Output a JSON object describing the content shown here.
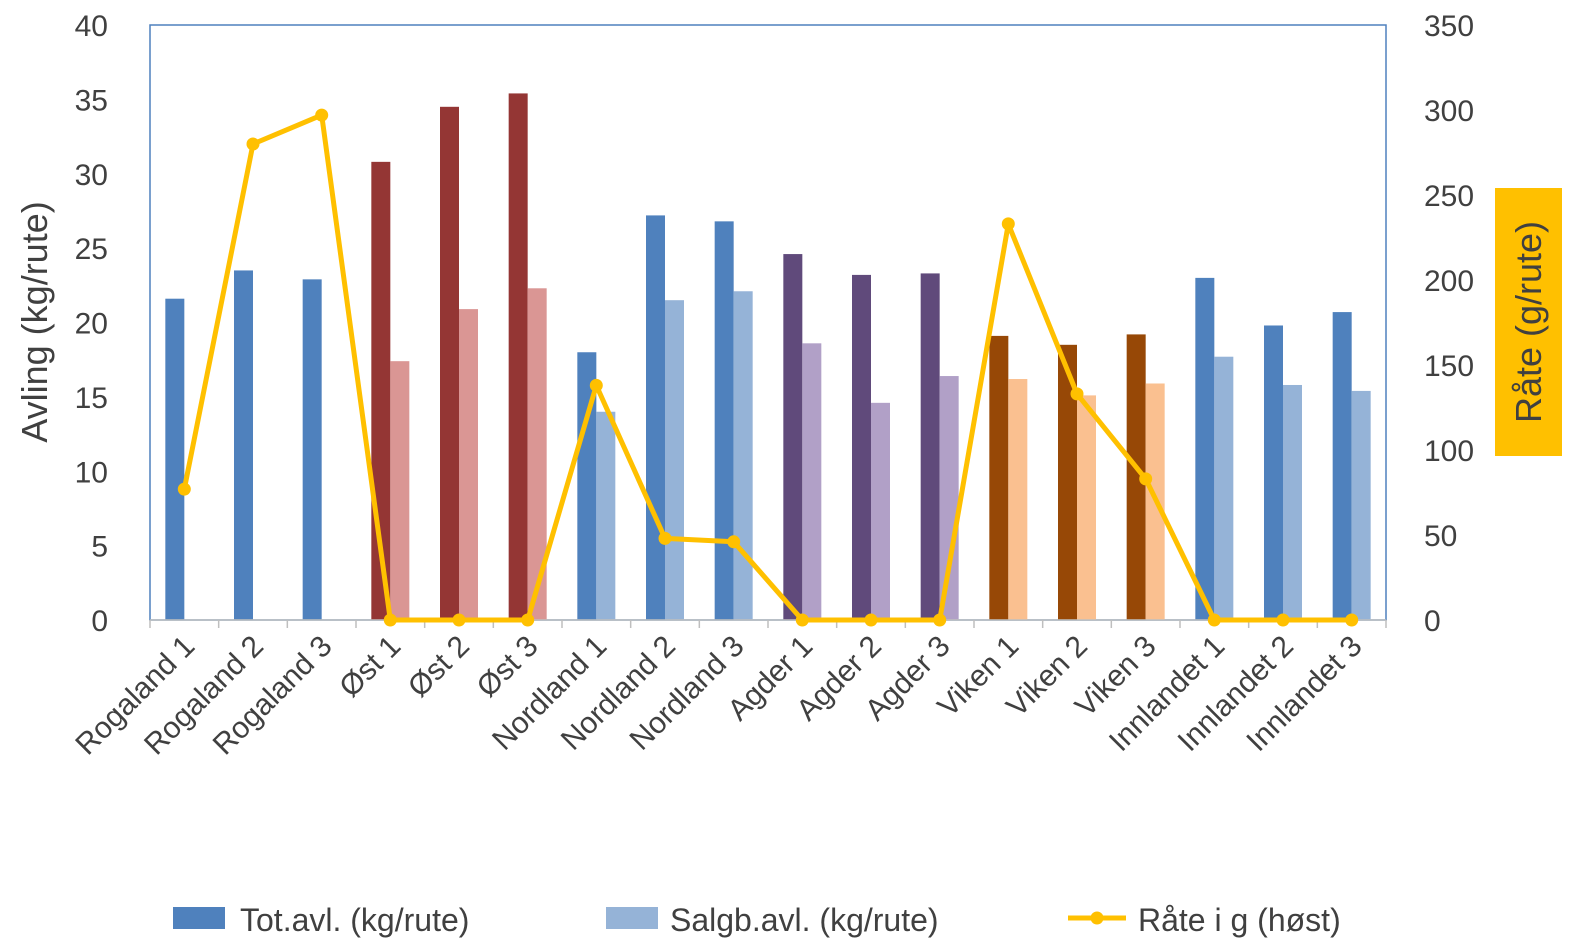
{
  "chart_data": {
    "type": "bar",
    "categories": [
      "Rogaland 1",
      "Rogaland 2",
      "Rogaland 3",
      "Øst 1",
      "Øst 2",
      "Øst 3",
      "Nordland 1",
      "Nordland 2",
      "Nordland 3",
      "Agder 1",
      "Agder 2",
      "Agder 3",
      "Viken 1",
      "Viken 2",
      "Viken 3",
      "Innlandet 1",
      "Innlandet 2",
      "Innlandet 3"
    ],
    "series": [
      {
        "name": "Tot.avl. (kg/rute)",
        "type": "bar",
        "axis": "left",
        "color": "#4F81BD",
        "values": [
          21.6,
          23.5,
          22.9,
          30.8,
          34.5,
          35.4,
          18.0,
          27.2,
          26.8,
          24.6,
          23.2,
          23.3,
          19.1,
          18.5,
          19.2,
          23.0,
          19.8,
          20.7
        ],
        "point_colors": [
          "#4F81BD",
          "#4F81BD",
          "#4F81BD",
          "#943634",
          "#943634",
          "#943634",
          "#4F81BD",
          "#4F81BD",
          "#4F81BD",
          "#604A7B",
          "#604A7B",
          "#604A7B",
          "#974806",
          "#974806",
          "#974806",
          "#4F81BD",
          "#4F81BD",
          "#4F81BD"
        ]
      },
      {
        "name": "Salgb.avl. (kg/rute)",
        "type": "bar",
        "axis": "left",
        "color": "#95B3D7",
        "values": [
          null,
          null,
          null,
          17.4,
          20.9,
          22.3,
          14.0,
          21.5,
          22.1,
          18.6,
          14.6,
          16.4,
          16.2,
          15.1,
          15.9,
          17.7,
          15.8,
          15.4
        ],
        "point_colors": [
          "#95B3D7",
          "#95B3D7",
          "#95B3D7",
          "#DA9694",
          "#DA9694",
          "#DA9694",
          "#95B3D7",
          "#95B3D7",
          "#95B3D7",
          "#B1A0C7",
          "#B1A0C7",
          "#B1A0C7",
          "#FAC090",
          "#FAC090",
          "#FAC090",
          "#95B3D7",
          "#95B3D7",
          "#95B3D7"
        ]
      },
      {
        "name": "Råte i g (høst)",
        "type": "line",
        "axis": "right",
        "color": "#FFC000",
        "values": [
          77,
          280,
          297,
          0,
          0,
          0,
          138,
          48,
          46,
          0,
          0,
          0,
          233,
          133,
          83,
          0,
          0,
          0
        ]
      }
    ],
    "ylabel": "Avling (kg/rute)",
    "ylim": [
      0,
      40
    ],
    "yticks": [
      "0",
      "5",
      "10",
      "15",
      "20",
      "25",
      "30",
      "35",
      "40"
    ],
    "y2label": "Råte (g/rute)",
    "y2label_bg": "#FFC000",
    "y2lim": [
      0,
      350
    ],
    "y2ticks": [
      "0",
      "50",
      "100",
      "150",
      "200",
      "250",
      "300",
      "350"
    ],
    "grid": false,
    "legend_position": "bottom",
    "plot_border_color": "#4F81BD"
  }
}
